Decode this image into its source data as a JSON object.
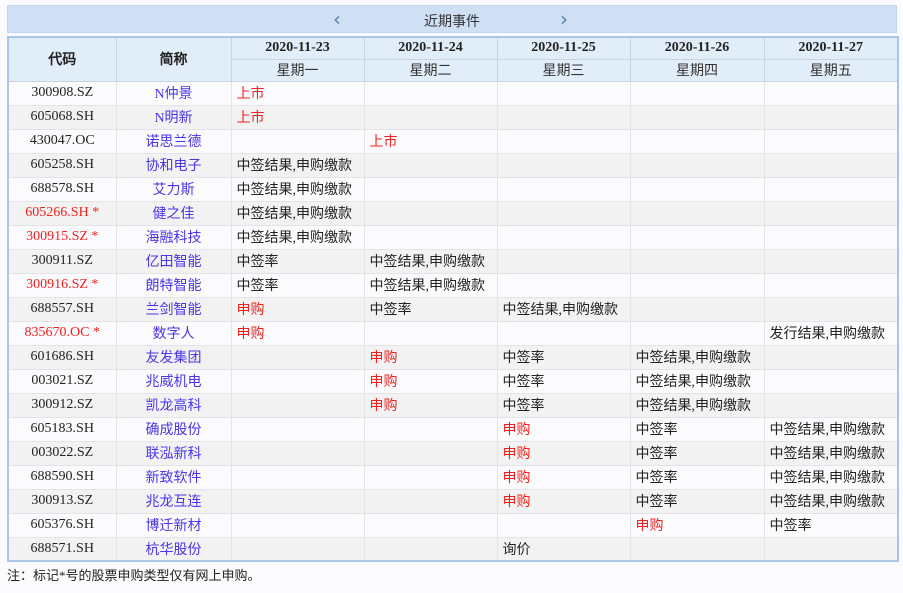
{
  "header": {
    "title": "近期事件",
    "prev_icon": "chevron-left-icon",
    "next_icon": "chevron-right-icon"
  },
  "columns": {
    "code": "代码",
    "name": "简称"
  },
  "days": [
    {
      "date": "2020-11-23",
      "weekday": "星期一"
    },
    {
      "date": "2020-11-24",
      "weekday": "星期二"
    },
    {
      "date": "2020-11-25",
      "weekday": "星期三"
    },
    {
      "date": "2020-11-26",
      "weekday": "星期四"
    },
    {
      "date": "2020-11-27",
      "weekday": "星期五"
    }
  ],
  "colors": {
    "red": "#f02020",
    "name_blue": "#4a35e8",
    "header_bg": "#cfe0f5"
  },
  "red_events": [
    "上市",
    "申购"
  ],
  "rows": [
    {
      "code": "300908.SZ",
      "name": "N仲景",
      "events": [
        "上市",
        "",
        "",
        "",
        ""
      ]
    },
    {
      "code": "605068.SH",
      "name": "N明新",
      "events": [
        "上市",
        "",
        "",
        "",
        ""
      ]
    },
    {
      "code": "430047.OC",
      "name": "诺思兰德",
      "events": [
        "",
        "上市",
        "",
        "",
        ""
      ]
    },
    {
      "code": "605258.SH",
      "name": "协和电子",
      "events": [
        "中签结果,申购缴款",
        "",
        "",
        "",
        ""
      ]
    },
    {
      "code": "688578.SH",
      "name": "艾力斯",
      "events": [
        "中签结果,申购缴款",
        "",
        "",
        "",
        ""
      ]
    },
    {
      "code": "605266.SH *",
      "name": "健之佳",
      "star": true,
      "events": [
        "中签结果,申购缴款",
        "",
        "",
        "",
        ""
      ]
    },
    {
      "code": "300915.SZ *",
      "name": "海融科技",
      "star": true,
      "events": [
        "中签结果,申购缴款",
        "",
        "",
        "",
        ""
      ]
    },
    {
      "code": "300911.SZ",
      "name": "亿田智能",
      "events": [
        "中签率",
        "中签结果,申购缴款",
        "",
        "",
        ""
      ]
    },
    {
      "code": "300916.SZ *",
      "name": "朗特智能",
      "star": true,
      "events": [
        "中签率",
        "中签结果,申购缴款",
        "",
        "",
        ""
      ]
    },
    {
      "code": "688557.SH",
      "name": "兰剑智能",
      "events": [
        "申购",
        "中签率",
        "中签结果,申购缴款",
        "",
        ""
      ]
    },
    {
      "code": "835670.OC *",
      "name": "数字人",
      "star": true,
      "events": [
        "申购",
        "",
        "",
        "",
        "发行结果,申购缴款"
      ]
    },
    {
      "code": "601686.SH",
      "name": "友发集团",
      "events": [
        "",
        "申购",
        "中签率",
        "中签结果,申购缴款",
        ""
      ]
    },
    {
      "code": "003021.SZ",
      "name": "兆威机电",
      "events": [
        "",
        "申购",
        "中签率",
        "中签结果,申购缴款",
        ""
      ]
    },
    {
      "code": "300912.SZ",
      "name": "凯龙高科",
      "events": [
        "",
        "申购",
        "中签率",
        "中签结果,申购缴款",
        ""
      ]
    },
    {
      "code": "605183.SH",
      "name": "确成股份",
      "events": [
        "",
        "",
        "申购",
        "中签率",
        "中签结果,申购缴款"
      ]
    },
    {
      "code": "003022.SZ",
      "name": "联泓新科",
      "events": [
        "",
        "",
        "申购",
        "中签率",
        "中签结果,申购缴款"
      ]
    },
    {
      "code": "688590.SH",
      "name": "新致软件",
      "events": [
        "",
        "",
        "申购",
        "中签率",
        "中签结果,申购缴款"
      ]
    },
    {
      "code": "300913.SZ",
      "name": "兆龙互连",
      "events": [
        "",
        "",
        "申购",
        "中签率",
        "中签结果,申购缴款"
      ]
    },
    {
      "code": "605376.SH",
      "name": "博迁新材",
      "events": [
        "",
        "",
        "",
        "申购",
        "中签率"
      ]
    },
    {
      "code": "688571.SH",
      "name": "杭华股份",
      "events": [
        "",
        "",
        "询价",
        "",
        ""
      ]
    }
  ],
  "note": "注：标记*号的股票申购类型仅有网上申购。"
}
